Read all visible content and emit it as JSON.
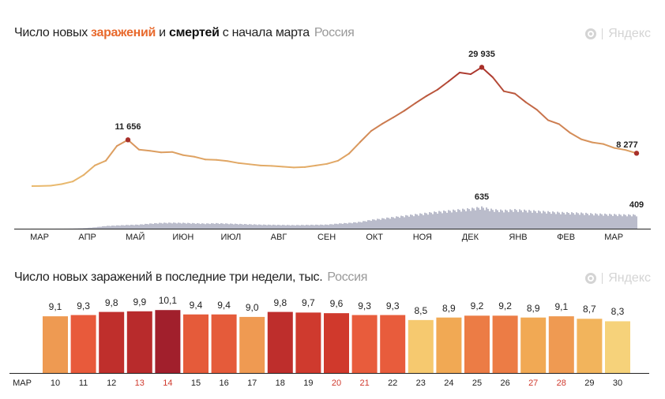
{
  "chart1": {
    "title_parts": {
      "a": "Число новых ",
      "infections": "заражений",
      "b": " и ",
      "deaths": "смертей",
      "c": " с начала марта"
    },
    "region": "Россия",
    "logo": "Яндекс"
  },
  "chart2": {
    "title": "Число новых заражений в последние три недели, тыс.",
    "region": "Россия",
    "logo": "Яндекс"
  },
  "chart_data": [
    {
      "type": "line",
      "title": "Число новых заражений и смертей с начала марта",
      "x_step_days": 7,
      "x_ticks": [
        "МАР",
        "АПР",
        "МАЙ",
        "ИЮН",
        "ИЮЛ",
        "АВГ",
        "СЕН",
        "ОКТ",
        "НОЯ",
        "ДЕК",
        "ЯНВ",
        "ФЕВ",
        "МАР"
      ],
      "series": [
        {
          "name": "заражений",
          "type": "line",
          "values": [
            20,
            100,
            500,
            1150,
            2800,
            5200,
            6400,
            10100,
            11656,
            9200,
            8900,
            8500,
            8600,
            7800,
            7400,
            6700,
            6600,
            6300,
            5800,
            5500,
            5200,
            5100,
            4900,
            4700,
            4800,
            5200,
            5600,
            6400,
            8200,
            11100,
            13900,
            15700,
            17300,
            19000,
            20900,
            22700,
            24300,
            26400,
            28600,
            28200,
            29935,
            27400,
            23900,
            23300,
            21100,
            19200,
            16600,
            15600,
            13400,
            11800,
            11000,
            10600,
            9600,
            9100,
            8277
          ],
          "annotations": [
            {
              "label": "11 656",
              "index": 8
            },
            {
              "label": "29 935",
              "index": 40
            },
            {
              "label": "8 277",
              "index": 54
            }
          ],
          "ylim": [
            0,
            30000
          ]
        },
        {
          "name": "смертей",
          "type": "bar",
          "values": [
            1,
            1,
            2,
            5,
            15,
            40,
            80,
            95,
            110,
            120,
            150,
            170,
            175,
            170,
            160,
            150,
            160,
            150,
            140,
            130,
            120,
            115,
            110,
            105,
            110,
            115,
            120,
            150,
            170,
            200,
            260,
            300,
            340,
            380,
            420,
            460,
            500,
            530,
            560,
            590,
            635,
            560,
            540,
            560,
            540,
            520,
            500,
            480,
            470,
            460,
            440,
            430,
            420,
            410,
            409
          ],
          "annotations": [
            {
              "label": "635",
              "index": 40
            },
            {
              "label": "409",
              "index": 54
            }
          ],
          "ylim": [
            0,
            650
          ]
        }
      ],
      "colors": {
        "low": "#e9b96e",
        "high": "#a8302a",
        "deaths": "#8c8fa8"
      }
    },
    {
      "type": "bar",
      "title": "Число новых заражений в последние три недели, тыс.",
      "month_label": "МАР",
      "categories": [
        "10",
        "11",
        "12",
        "13",
        "14",
        "15",
        "16",
        "17",
        "18",
        "19",
        "20",
        "21",
        "22",
        "23",
        "24",
        "25",
        "26",
        "27",
        "28",
        "29",
        "30"
      ],
      "values": [
        9.1,
        9.3,
        9.8,
        9.9,
        10.1,
        9.4,
        9.4,
        9.0,
        9.8,
        9.7,
        9.6,
        9.3,
        9.3,
        8.5,
        8.9,
        9.2,
        9.2,
        8.9,
        9.1,
        8.7,
        8.3
      ],
      "value_labels": [
        "9,1",
        "9,3",
        "9,8",
        "9,9",
        "10,1",
        "9,4",
        "9,4",
        "9,0",
        "9,8",
        "9,7",
        "9,6",
        "9,3",
        "9,3",
        "8,5",
        "8,9",
        "9,2",
        "9,2",
        "8,9",
        "9,1",
        "8,7",
        "8,3"
      ],
      "weekend": [
        false,
        false,
        false,
        true,
        true,
        false,
        false,
        false,
        false,
        false,
        true,
        true,
        false,
        false,
        false,
        false,
        false,
        true,
        true,
        false,
        false
      ],
      "bar_colors": [
        "#ee9a52",
        "#e85a3b",
        "#bf2f2c",
        "#b82b2c",
        "#a11f2c",
        "#e55b3a",
        "#e55b3a",
        "#ef9a52",
        "#be2e2c",
        "#cf3a2e",
        "#d0392c",
        "#e85c3c",
        "#e85c3c",
        "#f6c96f",
        "#f1a954",
        "#ec7c45",
        "#ec7c45",
        "#f1a954",
        "#ef9a52",
        "#f2b45c",
        "#f6d27a"
      ],
      "ylim": [
        0,
        10.1
      ]
    }
  ]
}
